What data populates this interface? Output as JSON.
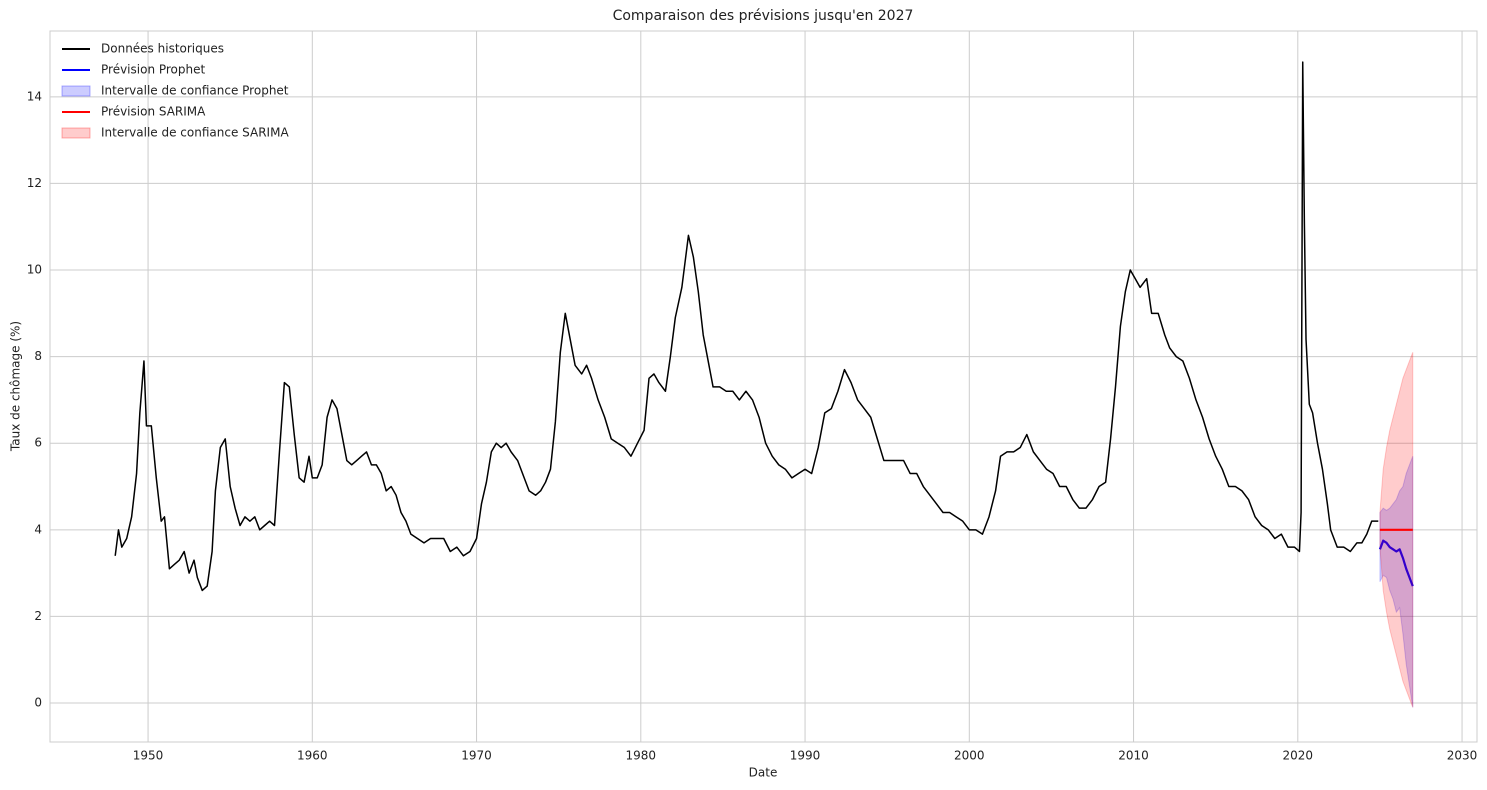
{
  "chart_data": {
    "type": "line",
    "title": "Comparaison des prévisions jusqu'en 2027",
    "x_label": "Date",
    "y_label": "Taux de chômage (%)",
    "xlim": [
      1944.03,
      2030.91
    ],
    "ylim": [
      -0.9,
      15.52
    ],
    "xticks": [
      1950,
      1960,
      1970,
      1980,
      1990,
      2000,
      2010,
      2020,
      2030
    ],
    "yticks": [
      0,
      2,
      4,
      6,
      8,
      10,
      12,
      14
    ],
    "grid": true,
    "legend": "upper left",
    "series": [
      {
        "name": "Données historiques",
        "color": "#000000",
        "x": [
          1948.0,
          1948.2,
          1948.4,
          1948.7,
          1949.0,
          1949.3,
          1949.5,
          1949.75,
          1949.9,
          1950.2,
          1950.5,
          1950.8,
          1951.0,
          1951.3,
          1951.6,
          1951.9,
          1952.2,
          1952.5,
          1952.8,
          1953.0,
          1953.3,
          1953.6,
          1953.9,
          1954.1,
          1954.4,
          1954.7,
          1955.0,
          1955.3,
          1955.6,
          1955.9,
          1956.2,
          1956.5,
          1956.8,
          1957.1,
          1957.4,
          1957.7,
          1958.0,
          1958.3,
          1958.6,
          1958.9,
          1959.2,
          1959.5,
          1959.8,
          1960.0,
          1960.3,
          1960.6,
          1960.9,
          1961.2,
          1961.5,
          1961.8,
          1962.1,
          1962.4,
          1962.7,
          1963.0,
          1963.3,
          1963.6,
          1963.9,
          1964.2,
          1964.5,
          1964.8,
          1965.1,
          1965.4,
          1965.7,
          1966.0,
          1966.4,
          1966.8,
          1967.2,
          1967.6,
          1968.0,
          1968.4,
          1968.8,
          1969.2,
          1969.6,
          1970.0,
          1970.3,
          1970.6,
          1970.9,
          1971.2,
          1971.5,
          1971.8,
          1972.1,
          1972.5,
          1972.9,
          1973.2,
          1973.6,
          1973.9,
          1974.2,
          1974.5,
          1974.8,
          1975.1,
          1975.4,
          1975.7,
          1976.0,
          1976.4,
          1976.7,
          1977.0,
          1977.4,
          1977.8,
          1978.2,
          1978.6,
          1979.0,
          1979.4,
          1979.8,
          1980.2,
          1980.5,
          1980.8,
          1981.1,
          1981.5,
          1981.8,
          1982.1,
          1982.5,
          1982.9,
          1983.2,
          1983.5,
          1983.8,
          1984.1,
          1984.4,
          1984.8,
          1985.2,
          1985.6,
          1986.0,
          1986.4,
          1986.8,
          1987.2,
          1987.6,
          1988.0,
          1988.4,
          1988.8,
          1989.2,
          1989.6,
          1990.0,
          1990.4,
          1990.8,
          1991.2,
          1991.6,
          1992.0,
          1992.4,
          1992.8,
          1993.2,
          1993.6,
          1994.0,
          1994.4,
          1994.8,
          1995.2,
          1995.6,
          1996.0,
          1996.4,
          1996.8,
          1997.2,
          1997.6,
          1998.0,
          1998.4,
          1998.8,
          1999.2,
          1999.6,
          2000.0,
          2000.4,
          2000.8,
          2001.2,
          2001.6,
          2001.9,
          2002.3,
          2002.7,
          2003.1,
          2003.5,
          2003.9,
          2004.3,
          2004.7,
          2005.1,
          2005.5,
          2005.9,
          2006.3,
          2006.7,
          2007.1,
          2007.5,
          2007.9,
          2008.3,
          2008.6,
          2008.9,
          2009.2,
          2009.5,
          2009.8,
          2010.1,
          2010.4,
          2010.8,
          2011.1,
          2011.5,
          2011.9,
          2012.2,
          2012.6,
          2013.0,
          2013.4,
          2013.8,
          2014.2,
          2014.6,
          2015.0,
          2015.4,
          2015.8,
          2016.2,
          2016.6,
          2017.0,
          2017.4,
          2017.8,
          2018.2,
          2018.6,
          2019.0,
          2019.4,
          2019.8,
          2020.1,
          2020.2,
          2020.3,
          2020.4,
          2020.5,
          2020.7,
          2020.9,
          2021.2,
          2021.5,
          2021.8,
          2022.0,
          2022.4,
          2022.8,
          2023.2,
          2023.6,
          2023.9,
          2024.2,
          2024.5,
          2024.9
        ],
        "values": [
          3.4,
          4.0,
          3.6,
          3.8,
          4.3,
          5.3,
          6.7,
          7.9,
          6.4,
          6.4,
          5.2,
          4.2,
          4.3,
          3.1,
          3.2,
          3.3,
          3.5,
          3.0,
          3.3,
          2.9,
          2.6,
          2.7,
          3.5,
          4.9,
          5.9,
          6.1,
          5.0,
          4.5,
          4.1,
          4.3,
          4.2,
          4.3,
          4.0,
          4.1,
          4.2,
          4.1,
          5.8,
          7.4,
          7.3,
          6.2,
          5.2,
          5.1,
          5.7,
          5.2,
          5.2,
          5.5,
          6.6,
          7.0,
          6.8,
          6.2,
          5.6,
          5.5,
          5.6,
          5.7,
          5.8,
          5.5,
          5.5,
          5.3,
          4.9,
          5.0,
          4.8,
          4.4,
          4.2,
          3.9,
          3.8,
          3.7,
          3.8,
          3.8,
          3.8,
          3.5,
          3.6,
          3.4,
          3.5,
          3.8,
          4.6,
          5.1,
          5.8,
          6.0,
          5.9,
          6.0,
          5.8,
          5.6,
          5.2,
          4.9,
          4.8,
          4.9,
          5.1,
          5.4,
          6.5,
          8.1,
          9.0,
          8.4,
          7.8,
          7.6,
          7.8,
          7.5,
          7.0,
          6.6,
          6.1,
          6.0,
          5.9,
          5.7,
          6.0,
          6.3,
          7.5,
          7.6,
          7.4,
          7.2,
          8.0,
          8.9,
          9.6,
          10.8,
          10.3,
          9.5,
          8.5,
          7.9,
          7.3,
          7.3,
          7.2,
          7.2,
          7.0,
          7.2,
          7.0,
          6.6,
          6.0,
          5.7,
          5.5,
          5.4,
          5.2,
          5.3,
          5.4,
          5.3,
          5.9,
          6.7,
          6.8,
          7.2,
          7.7,
          7.4,
          7.0,
          6.8,
          6.6,
          6.1,
          5.6,
          5.6,
          5.6,
          5.6,
          5.3,
          5.3,
          5.0,
          4.8,
          4.6,
          4.4,
          4.4,
          4.3,
          4.2,
          4.0,
          4.0,
          3.9,
          4.3,
          4.9,
          5.7,
          5.8,
          5.8,
          5.9,
          6.2,
          5.8,
          5.6,
          5.4,
          5.3,
          5.0,
          5.0,
          4.7,
          4.5,
          4.5,
          4.7,
          5.0,
          5.1,
          6.1,
          7.3,
          8.7,
          9.5,
          10.0,
          9.8,
          9.6,
          9.8,
          9.0,
          9.0,
          8.5,
          8.2,
          8.0,
          7.9,
          7.5,
          7.0,
          6.6,
          6.1,
          5.7,
          5.4,
          5.0,
          5.0,
          4.9,
          4.7,
          4.3,
          4.1,
          4.0,
          3.8,
          3.9,
          3.6,
          3.6,
          3.5,
          4.4,
          14.8,
          11.1,
          8.4,
          6.9,
          6.7,
          6.0,
          5.4,
          4.6,
          4.0,
          3.6,
          3.6,
          3.5,
          3.7,
          3.7,
          3.9,
          4.2,
          4.2
        ]
      },
      {
        "name": "Prévision Prophet",
        "color": "#0000ff",
        "x": [
          2025.0,
          2025.2,
          2025.4,
          2025.6,
          2025.8,
          2026.0,
          2026.2,
          2026.4,
          2026.6,
          2026.8,
          2027.0
        ],
        "values": [
          3.55,
          3.75,
          3.7,
          3.6,
          3.55,
          3.5,
          3.55,
          3.35,
          3.1,
          2.9,
          2.7
        ]
      },
      {
        "name": "Intervalle de confiance Prophet",
        "color": "#0000ff",
        "x": [
          2025.0,
          2025.2,
          2025.4,
          2025.6,
          2025.8,
          2026.0,
          2026.2,
          2026.4,
          2026.6,
          2026.8,
          2027.0
        ],
        "lower": [
          2.8,
          2.95,
          2.9,
          2.6,
          2.4,
          2.1,
          2.2,
          1.6,
          0.9,
          0.4,
          -0.1
        ],
        "upper": [
          4.4,
          4.5,
          4.45,
          4.5,
          4.6,
          4.7,
          4.9,
          5.0,
          5.3,
          5.5,
          5.7
        ]
      },
      {
        "name": "Prévision SARIMA",
        "color": "#ff0000",
        "x": [
          2025.0,
          2025.2,
          2025.4,
          2025.6,
          2025.8,
          2026.0,
          2026.2,
          2026.4,
          2026.6,
          2026.8,
          2027.0
        ],
        "values": [
          4.0,
          4.0,
          4.0,
          4.0,
          4.0,
          4.0,
          4.0,
          4.0,
          4.0,
          4.0,
          4.0
        ]
      },
      {
        "name": "Intervalle de confiance SARIMA",
        "color": "#ff0000",
        "x": [
          2025.0,
          2025.2,
          2025.4,
          2025.6,
          2025.8,
          2026.0,
          2026.2,
          2026.4,
          2026.6,
          2026.8,
          2027.0
        ],
        "lower": [
          3.6,
          2.6,
          2.1,
          1.7,
          1.4,
          1.1,
          0.8,
          0.5,
          0.3,
          0.1,
          -0.1
        ],
        "upper": [
          4.4,
          5.4,
          5.9,
          6.3,
          6.6,
          6.9,
          7.2,
          7.5,
          7.7,
          7.9,
          8.1
        ]
      }
    ]
  }
}
